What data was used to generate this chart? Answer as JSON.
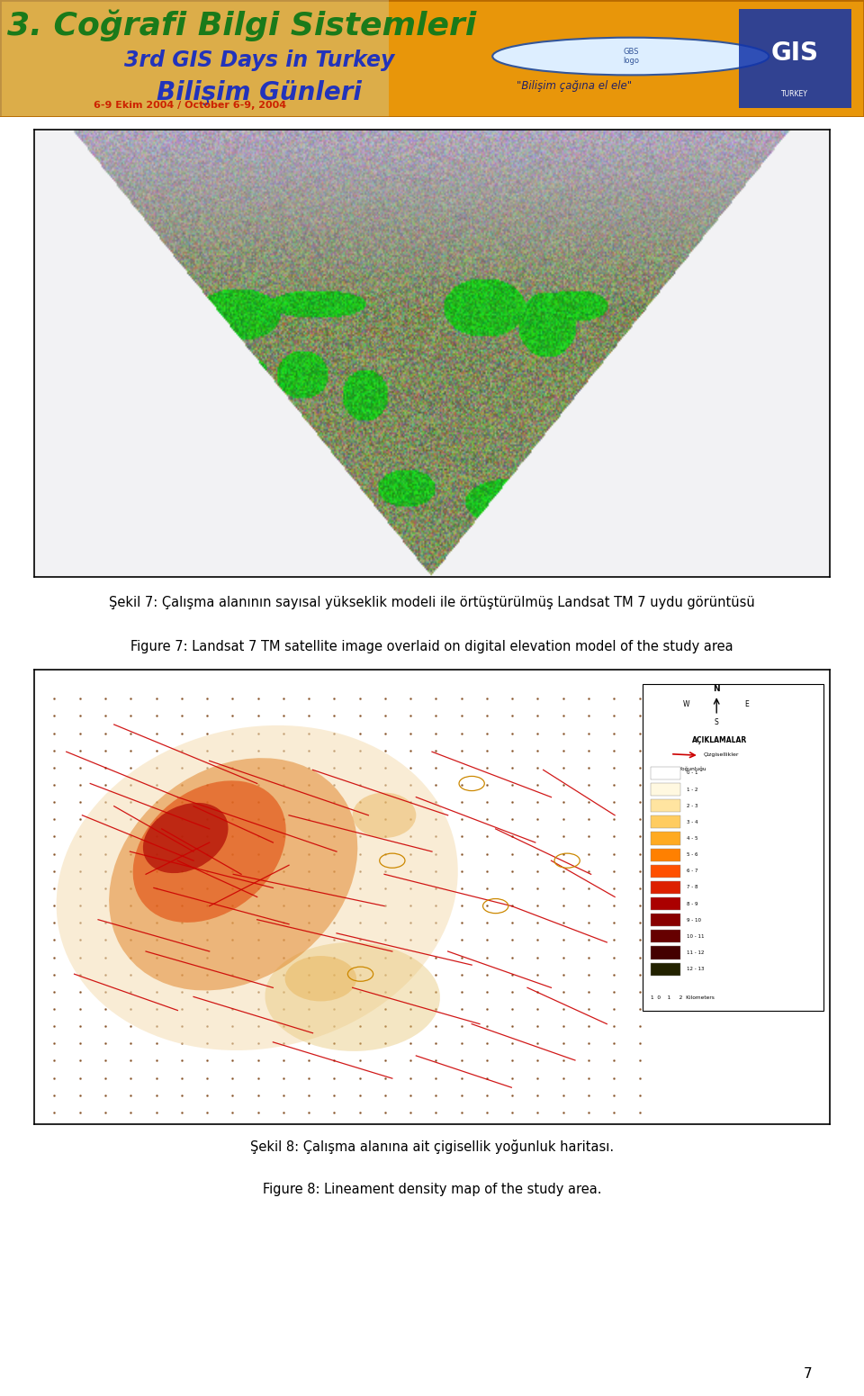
{
  "page_bg": "#ffffff",
  "header_bg": "#e8960a",
  "fig1_caption_tr": "Şekil 7: Çalışma alanının sayısal yükseklik modeli ile örtüştürülmüş Landsat TM 7 uydu görüntüsü",
  "fig1_caption_en": "Figure 7: Landsat 7 TM satellite image overlaid on digital elevation model of the study area",
  "fig2_caption_tr": "Şekil 8: Çalışma alanına ait çigisellik yoğunluk haritası.",
  "fig2_caption_en": "Figure 8: Lineament density map of the study area.",
  "page_number": "7",
  "caption_fontsize": 10.5,
  "page_num_fontsize": 11,
  "header_text1": "3. Coğrafi Bilgi Sistemleri",
  "header_text2": "3rd GIS Days in Turkey",
  "header_text3": "Bilişim Günleri",
  "header_text4": "6-9 Ekim 2004 / October 6-9, 2004",
  "header_text5": "\"Bilişim çağına el ele\""
}
